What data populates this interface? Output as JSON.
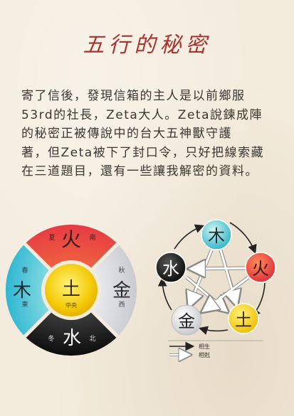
{
  "title": "五行的秘密",
  "story": {
    "lines": [
      "寄了信後，發現信箱的主人是以前鄉服",
      "53rd的社長，Zeta大人。Zeta說鍊成陣",
      "的秘密正被傳說中的台大五神獸守護",
      "著，但Zeta被下了封口令，只好把線索藏",
      "在三道題目，還有一些讓我解密的資料。"
    ]
  },
  "wheel": {
    "fire": {
      "element": "火",
      "season": "夏",
      "direction": "南",
      "color": "#e8413f"
    },
    "metal": {
      "element": "金",
      "season": "秋",
      "direction": "西",
      "color": "#e6e6ea"
    },
    "water": {
      "element": "水",
      "season": "冬",
      "direction": "北",
      "color": "#1b1b1b"
    },
    "wood": {
      "element": "木",
      "season": "春",
      "direction": "東",
      "color": "#49c6d6"
    },
    "earth": {
      "element": "土",
      "direction": "中央",
      "color": "#f3d20d"
    }
  },
  "cycle": {
    "nodes": [
      {
        "key": "wood",
        "element": "木",
        "color": "#44c3cf"
      },
      {
        "key": "fire",
        "element": "火",
        "color": "#e8423f"
      },
      {
        "key": "earth",
        "element": "土",
        "color": "#f2cf10"
      },
      {
        "key": "metal",
        "element": "金",
        "color": "#e9e9ec"
      },
      {
        "key": "water",
        "element": "水",
        "color": "#1c1c1c"
      }
    ],
    "legend": {
      "generate": "相生",
      "overcome": "相剋"
    }
  }
}
